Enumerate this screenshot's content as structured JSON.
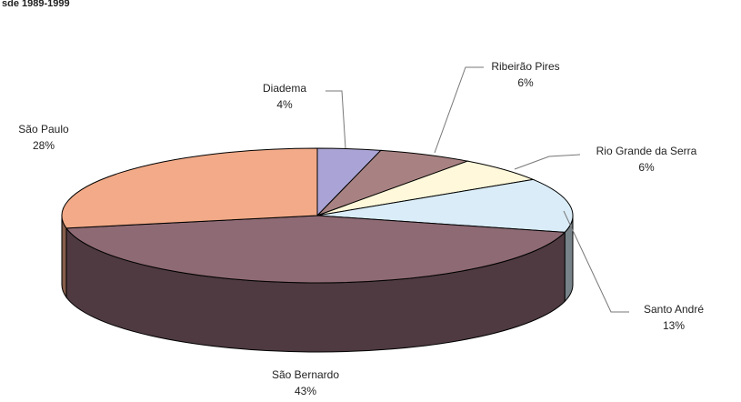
{
  "chart_data": {
    "type": "pie",
    "title": "sde 1989-1999",
    "categories": [
      "Diadema",
      "Ribeirão Pires",
      "Rio Grande da Serra",
      "Santo André",
      "São Bernardo",
      "São Paulo"
    ],
    "values": [
      4,
      6,
      6,
      13,
      43,
      28
    ],
    "value_labels": [
      "4%",
      "6%",
      "6%",
      "13%",
      "43%",
      "28%"
    ],
    "colors": [
      "#aaa4d6",
      "#a88282",
      "#fff8da",
      "#d9ecf8",
      "#8e6a74",
      "#f2aa88"
    ]
  }
}
